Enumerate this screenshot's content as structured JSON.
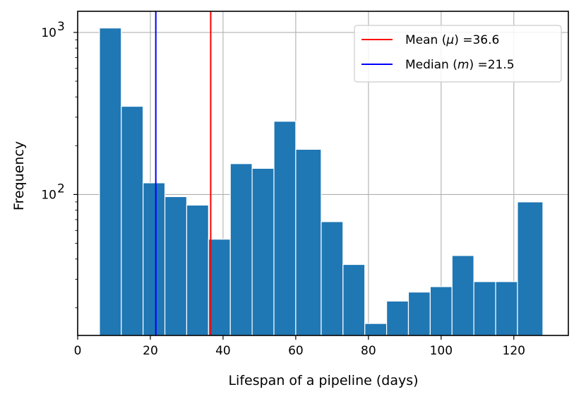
{
  "chart_data": {
    "type": "bar",
    "title": "",
    "xlabel": "Lifespan of a pipeline (days)",
    "ylabel": "Frequency",
    "yscale": "log",
    "xlim": [
      0,
      135
    ],
    "ylim": [
      13.5,
      1350
    ],
    "grid": true,
    "x_ticks": [
      0,
      20,
      40,
      60,
      80,
      100,
      120
    ],
    "y_ticks": [
      {
        "value": 1000,
        "base": "10",
        "exp": "3"
      },
      {
        "value": 100,
        "base": "10",
        "exp": "2"
      }
    ],
    "bins": [
      {
        "x0": 6,
        "x1": 12,
        "value": 1065
      },
      {
        "x0": 12,
        "x1": 18,
        "value": 350
      },
      {
        "x0": 18,
        "x1": 24,
        "value": 118
      },
      {
        "x0": 24,
        "x1": 30,
        "value": 97
      },
      {
        "x0": 30,
        "x1": 36,
        "value": 86
      },
      {
        "x0": 36,
        "x1": 42,
        "value": 53
      },
      {
        "x0": 42,
        "x1": 48,
        "value": 155
      },
      {
        "x0": 48,
        "x1": 54,
        "value": 145
      },
      {
        "x0": 54,
        "x1": 60,
        "value": 283
      },
      {
        "x0": 60,
        "x1": 67,
        "value": 190
      },
      {
        "x0": 67,
        "x1": 73,
        "value": 68
      },
      {
        "x0": 73,
        "x1": 79,
        "value": 37
      },
      {
        "x0": 79,
        "x1": 85,
        "value": 16
      },
      {
        "x0": 85,
        "x1": 91,
        "value": 22
      },
      {
        "x0": 91,
        "x1": 97,
        "value": 25
      },
      {
        "x0": 97,
        "x1": 103,
        "value": 27
      },
      {
        "x0": 103,
        "x1": 109,
        "value": 42
      },
      {
        "x0": 109,
        "x1": 115,
        "value": 29
      },
      {
        "x0": 115,
        "x1": 121,
        "value": 29
      },
      {
        "x0": 121,
        "x1": 128,
        "value": 90
      }
    ],
    "bar_color": "#1f77b4",
    "vlines": [
      {
        "name": "mean",
        "label": "Mean ($\\mu$) =36.6",
        "legend_prefix": "Mean (",
        "legend_symbol": "μ",
        "legend_suffix": ") =36.6",
        "x": 36.6,
        "color": "#ff0000"
      },
      {
        "name": "median",
        "label": "Median ($m$) =21.5",
        "legend_prefix": "Median (",
        "legend_symbol": "m",
        "legend_suffix": ") =21.5",
        "x": 21.5,
        "color": "#0000ff"
      }
    ],
    "legend_position": "top-right"
  }
}
